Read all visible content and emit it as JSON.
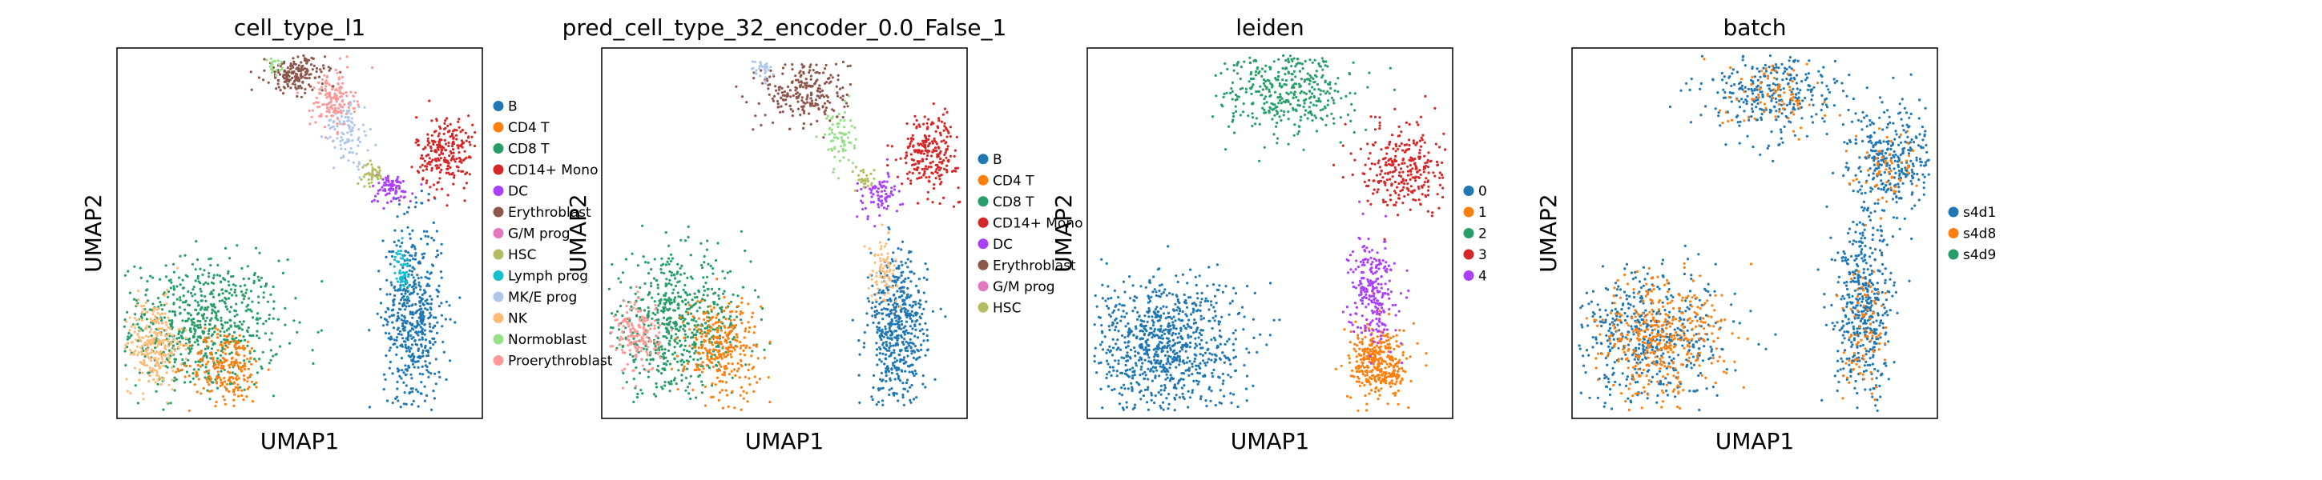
{
  "palette": {
    "B": "#1f77b4",
    "CD4 T": "#ff7f0e",
    "CD8 T": "#279e68",
    "CD14+ Mono": "#d62728",
    "DC": "#aa40fc",
    "Erythroblast": "#8c564b",
    "G/M prog": "#e377c2",
    "HSC": "#b5bd61",
    "Lymph prog": "#17becf",
    "MK/E prog": "#aec7e8",
    "NK": "#ffbb78",
    "Normoblast": "#98df8a",
    "Proerythroblast": "#ff9896"
  },
  "chart_data": [
    {
      "type": "scatter",
      "title": "cell_type_l1",
      "xlabel": "UMAP1",
      "ylabel": "UMAP2",
      "legend_position": "right",
      "legend": [
        {
          "label": "B",
          "color": "#1f77b4"
        },
        {
          "label": "CD4 T",
          "color": "#ff7f0e"
        },
        {
          "label": "CD8 T",
          "color": "#279e68"
        },
        {
          "label": "CD14+ Mono",
          "color": "#d62728"
        },
        {
          "label": "DC",
          "color": "#aa40fc"
        },
        {
          "label": "Erythroblast",
          "color": "#8c564b"
        },
        {
          "label": "G/M prog",
          "color": "#e377c2"
        },
        {
          "label": "HSC",
          "color": "#b5bd61"
        },
        {
          "label": "Lymph prog",
          "color": "#17becf"
        },
        {
          "label": "MK/E prog",
          "color": "#aec7e8"
        },
        {
          "label": "NK",
          "color": "#ffbb78"
        },
        {
          "label": "Normoblast",
          "color": "#98df8a"
        },
        {
          "label": "Proerythroblast",
          "color": "#ff9896"
        }
      ],
      "clusters": [
        {
          "label": "CD8 T",
          "color": "#279e68",
          "cx": 0.23,
          "cy": 0.25,
          "sx": 0.11,
          "sy": 0.09,
          "n": 700
        },
        {
          "label": "NK",
          "color": "#ffbb78",
          "cx": 0.1,
          "cy": 0.2,
          "sx": 0.04,
          "sy": 0.06,
          "n": 260
        },
        {
          "label": "CD4 T",
          "color": "#ff7f0e",
          "cx": 0.3,
          "cy": 0.14,
          "sx": 0.05,
          "sy": 0.05,
          "n": 220
        },
        {
          "label": "B",
          "color": "#1f77b4",
          "cx": 0.81,
          "cy": 0.27,
          "sx": 0.04,
          "sy": 0.13,
          "n": 550
        },
        {
          "label": "Lymph prog",
          "color": "#17becf",
          "cx": 0.78,
          "cy": 0.4,
          "sx": 0.01,
          "sy": 0.03,
          "n": 60
        },
        {
          "label": "CD14+ Mono",
          "color": "#d62728",
          "cx": 0.9,
          "cy": 0.72,
          "sx": 0.04,
          "sy": 0.05,
          "n": 240
        },
        {
          "label": "DC",
          "color": "#aa40fc",
          "cx": 0.75,
          "cy": 0.62,
          "sx": 0.03,
          "sy": 0.02,
          "n": 80
        },
        {
          "label": "HSC",
          "color": "#b5bd61",
          "cx": 0.7,
          "cy": 0.66,
          "sx": 0.015,
          "sy": 0.015,
          "n": 40
        },
        {
          "label": "MK/E prog",
          "color": "#aec7e8",
          "cx": 0.63,
          "cy": 0.78,
          "sx": 0.03,
          "sy": 0.05,
          "n": 110
        },
        {
          "label": "Proerythroblast",
          "color": "#ff9896",
          "cx": 0.59,
          "cy": 0.86,
          "sx": 0.03,
          "sy": 0.04,
          "n": 140
        },
        {
          "label": "Erythroblast",
          "color": "#8c564b",
          "cx": 0.49,
          "cy": 0.93,
          "sx": 0.04,
          "sy": 0.025,
          "n": 180
        },
        {
          "label": "Normoblast",
          "color": "#98df8a",
          "cx": 0.43,
          "cy": 0.95,
          "sx": 0.01,
          "sy": 0.01,
          "n": 20
        }
      ]
    },
    {
      "type": "scatter",
      "title": "pred_cell_type_32_encoder_0.0_False_1",
      "xlabel": "UMAP1",
      "ylabel": "UMAP2",
      "legend_position": "right",
      "legend": [
        {
          "label": "B",
          "color": "#1f77b4"
        },
        {
          "label": "CD4 T",
          "color": "#ff7f0e"
        },
        {
          "label": "CD8 T",
          "color": "#279e68"
        },
        {
          "label": "CD14+ Mono",
          "color": "#d62728"
        },
        {
          "label": "DC",
          "color": "#aa40fc"
        },
        {
          "label": "Erythroblast",
          "color": "#8c564b"
        },
        {
          "label": "G/M prog",
          "color": "#e377c2"
        },
        {
          "label": "HSC",
          "color": "#b5bd61"
        }
      ],
      "clusters": [
        {
          "label": "CD8 T",
          "color": "#279e68",
          "cx": 0.2,
          "cy": 0.25,
          "sx": 0.1,
          "sy": 0.09,
          "n": 650
        },
        {
          "label": "CD4 T",
          "color": "#ff7f0e",
          "cx": 0.33,
          "cy": 0.19,
          "sx": 0.05,
          "sy": 0.07,
          "n": 300
        },
        {
          "label": "Proerythroblast",
          "color": "#ff9896",
          "cx": 0.1,
          "cy": 0.22,
          "sx": 0.03,
          "sy": 0.05,
          "n": 160
        },
        {
          "label": "B",
          "color": "#1f77b4",
          "cx": 0.81,
          "cy": 0.24,
          "sx": 0.04,
          "sy": 0.1,
          "n": 520
        },
        {
          "label": "NK",
          "color": "#ffbb78",
          "cx": 0.77,
          "cy": 0.4,
          "sx": 0.02,
          "sy": 0.04,
          "n": 80
        },
        {
          "label": "CD14+ Mono",
          "color": "#d62728",
          "cx": 0.9,
          "cy": 0.72,
          "sx": 0.04,
          "sy": 0.05,
          "n": 240
        },
        {
          "label": "DC",
          "color": "#aa40fc",
          "cx": 0.76,
          "cy": 0.6,
          "sx": 0.03,
          "sy": 0.03,
          "n": 80
        },
        {
          "label": "HSC",
          "color": "#b5bd61",
          "cx": 0.72,
          "cy": 0.65,
          "sx": 0.015,
          "sy": 0.015,
          "n": 30
        },
        {
          "label": "Normoblast",
          "color": "#98df8a",
          "cx": 0.65,
          "cy": 0.76,
          "sx": 0.02,
          "sy": 0.04,
          "n": 70
        },
        {
          "label": "Erythroblast",
          "color": "#8c564b",
          "cx": 0.56,
          "cy": 0.88,
          "sx": 0.06,
          "sy": 0.05,
          "n": 240
        },
        {
          "label": "MK/E prog",
          "color": "#aec7e8",
          "cx": 0.44,
          "cy": 0.94,
          "sx": 0.015,
          "sy": 0.015,
          "n": 30
        }
      ]
    },
    {
      "type": "scatter",
      "title": "leiden",
      "xlabel": "UMAP1",
      "ylabel": "UMAP2",
      "legend_position": "right",
      "legend": [
        {
          "label": "0",
          "color": "#1f77b4"
        },
        {
          "label": "1",
          "color": "#ff7f0e"
        },
        {
          "label": "2",
          "color": "#279e68"
        },
        {
          "label": "3",
          "color": "#d62728"
        },
        {
          "label": "4",
          "color": "#aa40fc"
        }
      ],
      "clusters": [
        {
          "label": "0",
          "color": "#1f77b4",
          "cx": 0.2,
          "cy": 0.2,
          "sx": 0.11,
          "sy": 0.09,
          "n": 900
        },
        {
          "label": "1",
          "color": "#ff7f0e",
          "cx": 0.8,
          "cy": 0.15,
          "sx": 0.04,
          "sy": 0.05,
          "n": 350
        },
        {
          "label": "4",
          "color": "#aa40fc",
          "cx": 0.78,
          "cy": 0.35,
          "sx": 0.03,
          "sy": 0.07,
          "n": 250
        },
        {
          "label": "2",
          "color": "#279e68",
          "cx": 0.55,
          "cy": 0.88,
          "sx": 0.09,
          "sy": 0.06,
          "n": 400
        },
        {
          "label": "3",
          "color": "#d62728",
          "cx": 0.87,
          "cy": 0.68,
          "sx": 0.06,
          "sy": 0.06,
          "n": 300
        }
      ]
    },
    {
      "type": "scatter",
      "title": "batch",
      "xlabel": "UMAP1",
      "ylabel": "UMAP2",
      "legend_position": "right",
      "legend": [
        {
          "label": "s4d1",
          "color": "#1f77b4"
        },
        {
          "label": "s4d8",
          "color": "#ff7f0e"
        },
        {
          "label": "s4d9",
          "color": "#279e68"
        }
      ],
      "clusters": [
        {
          "label": "s4d1",
          "color": "#1f77b4",
          "cx": 0.22,
          "cy": 0.22,
          "sx": 0.11,
          "sy": 0.09,
          "n": 500
        },
        {
          "label": "s4d8",
          "color": "#ff7f0e",
          "cx": 0.24,
          "cy": 0.22,
          "sx": 0.09,
          "sy": 0.08,
          "n": 400
        },
        {
          "label": "s4d1",
          "color": "#1f77b4",
          "cx": 0.8,
          "cy": 0.28,
          "sx": 0.04,
          "sy": 0.12,
          "n": 450
        },
        {
          "label": "s4d8",
          "color": "#ff7f0e",
          "cx": 0.8,
          "cy": 0.25,
          "sx": 0.03,
          "sy": 0.1,
          "n": 90
        },
        {
          "label": "s4d1",
          "color": "#1f77b4",
          "cx": 0.88,
          "cy": 0.7,
          "sx": 0.06,
          "sy": 0.07,
          "n": 330
        },
        {
          "label": "s4d8",
          "color": "#ff7f0e",
          "cx": 0.86,
          "cy": 0.68,
          "sx": 0.05,
          "sy": 0.05,
          "n": 60
        },
        {
          "label": "s4d1",
          "color": "#1f77b4",
          "cx": 0.55,
          "cy": 0.88,
          "sx": 0.09,
          "sy": 0.06,
          "n": 320
        },
        {
          "label": "s4d8",
          "color": "#ff7f0e",
          "cx": 0.56,
          "cy": 0.87,
          "sx": 0.07,
          "sy": 0.05,
          "n": 80
        }
      ]
    }
  ]
}
